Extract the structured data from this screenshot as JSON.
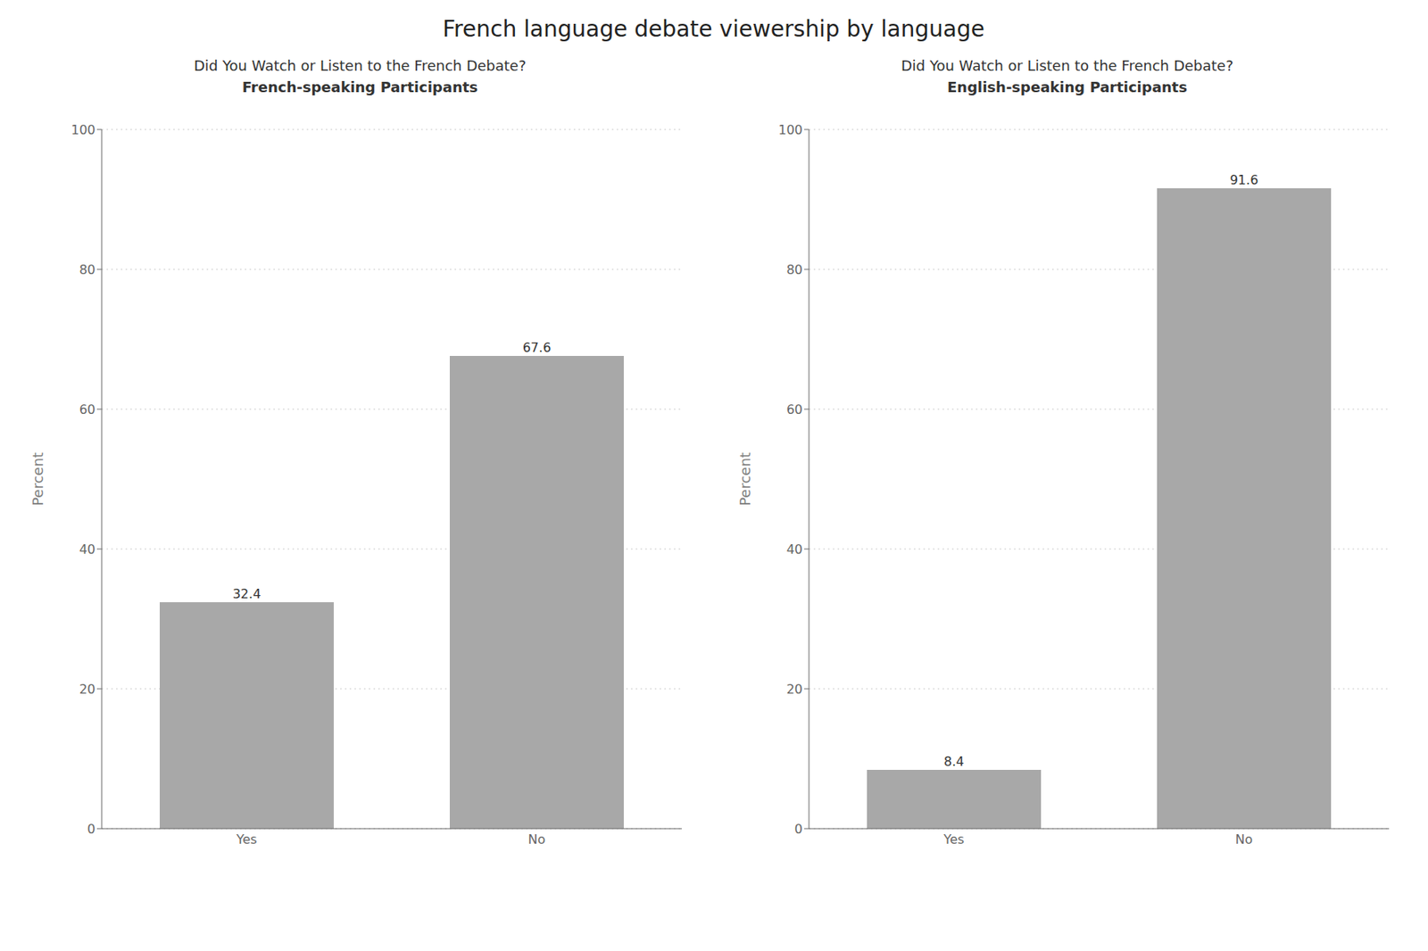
{
  "title": "French language debate viewership by language",
  "chart_data": [
    {
      "type": "bar",
      "title": "Did You Watch or Listen to the French Debate?",
      "subtitle": "French-speaking Participants",
      "categories": [
        "Yes",
        "No"
      ],
      "values": [
        32.4,
        67.6
      ],
      "color": "#a8a8a8",
      "ylabel": "Percent",
      "ylim": [
        0,
        100
      ],
      "yticks": [
        0,
        20,
        40,
        60,
        80,
        100
      ],
      "grid": true,
      "data_labels": true
    },
    {
      "type": "bar",
      "title": "Did You Watch or Listen to the French Debate?",
      "subtitle": "English-speaking Participants",
      "categories": [
        "Yes",
        "No"
      ],
      "values": [
        8.4,
        91.6
      ],
      "color": "#a8a8a8",
      "ylabel": "Percent",
      "ylim": [
        0,
        100
      ],
      "yticks": [
        0,
        20,
        40,
        60,
        80,
        100
      ],
      "grid": true,
      "data_labels": true
    }
  ]
}
